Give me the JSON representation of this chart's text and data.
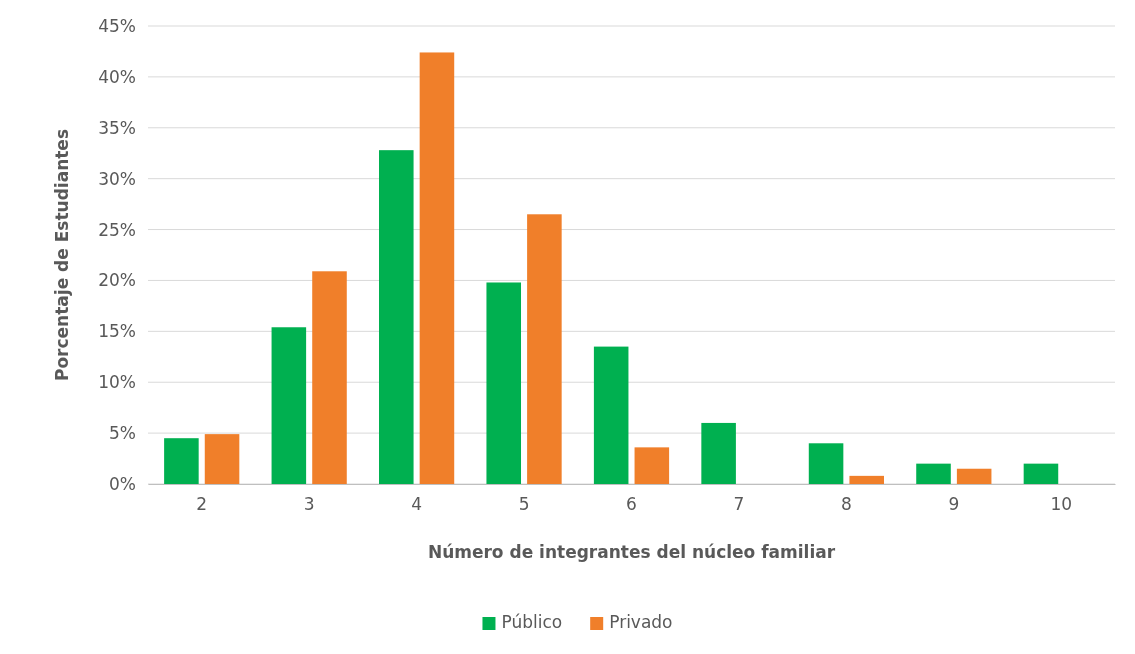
{
  "chart_data": {
    "type": "bar",
    "xlabel": "Número de integrantes del núcleo familiar",
    "ylabel": "Porcentaje de Estudiantes",
    "categories": [
      "2",
      "3",
      "4",
      "5",
      "6",
      "7",
      "8",
      "9",
      "10"
    ],
    "series": [
      {
        "name": "Público",
        "color": "#00b050",
        "values": [
          4.5,
          15.4,
          32.8,
          19.8,
          13.5,
          6.0,
          4.0,
          2.0,
          2.0
        ]
      },
      {
        "name": "Privado",
        "color": "#f07f2a",
        "values": [
          4.9,
          20.9,
          42.4,
          26.5,
          3.6,
          0,
          0.8,
          1.5,
          0
        ]
      }
    ],
    "ylim": [
      0,
      45
    ],
    "yticks": [
      {
        "value": 0,
        "label": "0%"
      },
      {
        "value": 5,
        "label": "5%"
      },
      {
        "value": 10,
        "label": "10%"
      },
      {
        "value": 15,
        "label": "15%"
      },
      {
        "value": 20,
        "label": "20%"
      },
      {
        "value": 25,
        "label": "25%"
      },
      {
        "value": 30,
        "label": "30%"
      },
      {
        "value": 35,
        "label": "35%"
      },
      {
        "value": 40,
        "label": "40%"
      },
      {
        "value": 45,
        "label": "45%"
      }
    ],
    "grid": "y",
    "legend": "bottom"
  }
}
